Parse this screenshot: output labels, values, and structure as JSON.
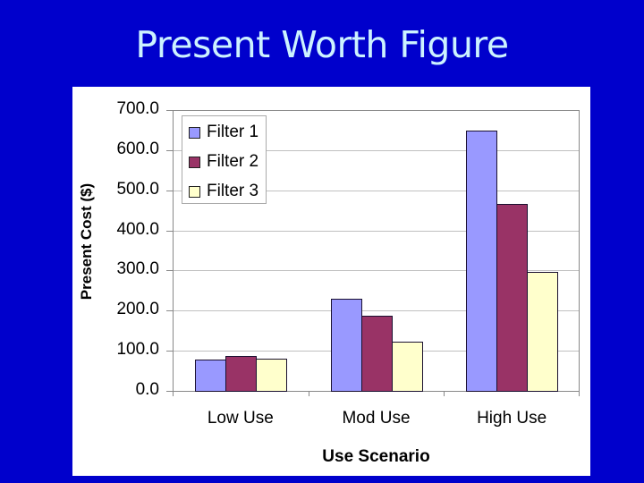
{
  "slide": {
    "title": "Present Worth Figure",
    "background_color": "#0000cc",
    "title_color": "#ccf2ff"
  },
  "chart_data": {
    "type": "bar",
    "title": "",
    "xlabel": "Use Scenario",
    "ylabel": "Present Cost ($)",
    "categories": [
      "Low Use",
      "Mod Use",
      "High Use"
    ],
    "series": [
      {
        "name": "Filter 1",
        "color": "#9999ff",
        "values": [
          78,
          229,
          648
        ]
      },
      {
        "name": "Filter 2",
        "color": "#993366",
        "values": [
          87,
          187,
          465
        ]
      },
      {
        "name": "Filter 3",
        "color": "#ffffcc",
        "values": [
          80,
          122,
          296
        ]
      }
    ],
    "ylim": [
      0,
      700
    ],
    "yticks": [
      "0.0",
      "100.0",
      "200.0",
      "300.0",
      "400.0",
      "500.0",
      "600.0",
      "700.0"
    ],
    "grid": true,
    "legend_position": "top-left inside"
  }
}
